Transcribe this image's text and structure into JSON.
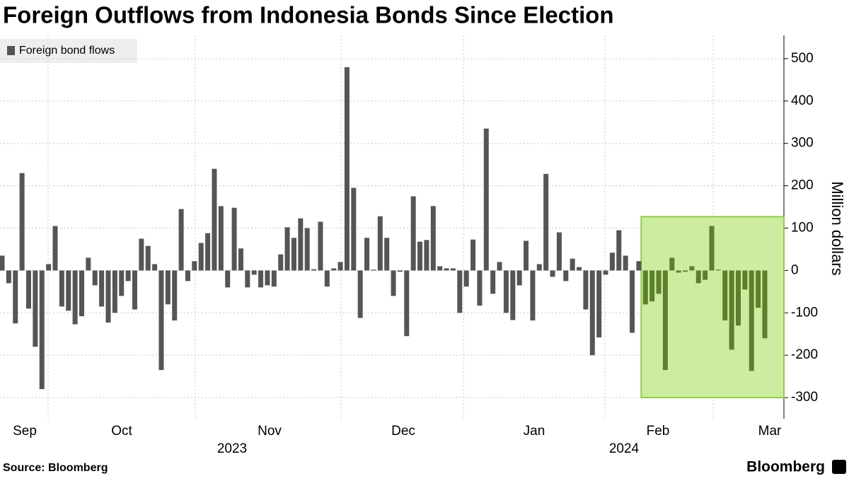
{
  "chart_data": {
    "type": "bar",
    "title": "Foreign Outflows from Indonesia Bonds Since Election",
    "legend": "Foreign bond flows",
    "y_axis_label": "Million dollars",
    "source": "Source: Bloomberg",
    "brand": "Bloomberg",
    "month_labels": [
      "Sep",
      "Oct",
      "Nov",
      "Dec",
      "Jan",
      "Feb",
      "Mar"
    ],
    "year_labels": [
      "2023",
      "2024"
    ],
    "color": "#555555",
    "highlight_color": "#5b7f2b",
    "highlight": {
      "start_index": 97,
      "ylim": [
        -300,
        127
      ],
      "fill": "#cdeca0",
      "stroke": "#8fd13f"
    },
    "categories": [
      null,
      null,
      null,
      null,
      null,
      null,
      null,
      null,
      null,
      null,
      null,
      null,
      null,
      null,
      null,
      null,
      null,
      null,
      null,
      null,
      null,
      null,
      null,
      null,
      null,
      null,
      null,
      null,
      null,
      null,
      null,
      null,
      null,
      null,
      null,
      null,
      null,
      null,
      null,
      null,
      null,
      null,
      null,
      null,
      null,
      null,
      null,
      null,
      null,
      null,
      null,
      null,
      null,
      null,
      null,
      null,
      null,
      null,
      null,
      null,
      null,
      null,
      null,
      null,
      null,
      null,
      null,
      null,
      null,
      null,
      null,
      null,
      null,
      null,
      null,
      null,
      null,
      null,
      null,
      null,
      null,
      null,
      null,
      null,
      null,
      null,
      null,
      null,
      null,
      null,
      null,
      null,
      null,
      null,
      null,
      null,
      null,
      null,
      null,
      null,
      null,
      null,
      null,
      null,
      null,
      null,
      null,
      null,
      null,
      null,
      null,
      null,
      null,
      null,
      null,
      null
    ],
    "values": [
      35,
      -30,
      -125,
      230,
      -90,
      -180,
      -280,
      15,
      105,
      -85,
      -95,
      -127,
      -108,
      30,
      -35,
      -85,
      -123,
      -100,
      -60,
      -25,
      -92,
      75,
      58,
      15,
      -235,
      -80,
      -118,
      145,
      -25,
      22,
      65,
      88,
      240,
      152,
      -40,
      148,
      52,
      -40,
      -10,
      -40,
      -35,
      -38,
      38,
      102,
      77,
      123,
      100,
      3,
      115,
      -38,
      5,
      20,
      480,
      195,
      -112,
      77,
      2,
      128,
      77,
      -60,
      -3,
      -155,
      175,
      68,
      72,
      152,
      10,
      5,
      5,
      -100,
      -38,
      73,
      -83,
      335,
      -55,
      20,
      -100,
      -117,
      -35,
      70,
      -118,
      15,
      228,
      -15,
      90,
      -25,
      28,
      8,
      -92,
      -200,
      -158,
      -10,
      42,
      95,
      35,
      -147,
      22,
      -80,
      -73,
      -55,
      -235,
      30,
      -5,
      -3,
      10,
      -30,
      -22,
      105,
      2,
      -118,
      -187,
      -130,
      -45,
      -237,
      -88,
      -160
    ],
    "ylim": [
      -350,
      555
    ],
    "yticks": [
      -300,
      -200,
      -100,
      0,
      100,
      200,
      300,
      400,
      500
    ],
    "grid": true
  }
}
